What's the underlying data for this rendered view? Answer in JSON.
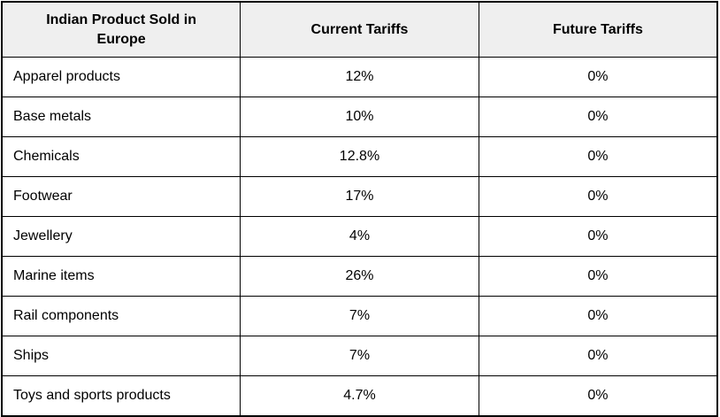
{
  "colors": {
    "header_bg": "#efefef",
    "border": "#000000",
    "row_bg": "#ffffff",
    "text": "#000000"
  },
  "chart_data": {
    "type": "table",
    "title": "",
    "columns": [
      "Indian Product Sold in Europe",
      "Current Tariffs",
      "Future Tariffs"
    ],
    "rows": [
      [
        "Apparel products",
        "12%",
        "0%"
      ],
      [
        "Base metals",
        "10%",
        "0%"
      ],
      [
        "Chemicals",
        "12.8%",
        "0%"
      ],
      [
        "Footwear",
        "17%",
        "0%"
      ],
      [
        "Jewellery",
        "4%",
        "0%"
      ],
      [
        "Marine items",
        "26%",
        "0%"
      ],
      [
        "Rail components",
        "7%",
        "0%"
      ],
      [
        "Ships",
        "7%",
        "0%"
      ],
      [
        "Toys and sports products",
        "4.7%",
        "0%"
      ]
    ],
    "current_tariffs_numeric": [
      12,
      10,
      12.8,
      17,
      4,
      26,
      7,
      7,
      4.7
    ],
    "future_tariffs_numeric": [
      0,
      0,
      0,
      0,
      0,
      0,
      0,
      0,
      0
    ],
    "layout": {
      "header_background": "#efefef",
      "outer_border_px": 2,
      "inner_border_px": 1,
      "column_alignment": [
        "left",
        "center",
        "center"
      ]
    }
  }
}
